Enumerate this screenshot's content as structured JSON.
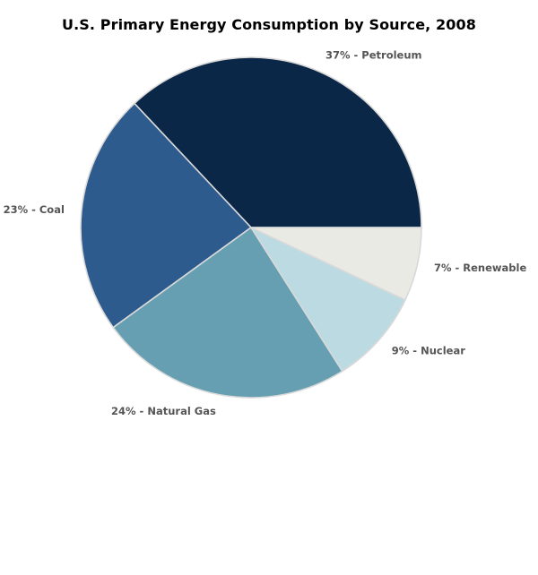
{
  "chart_data": {
    "type": "pie",
    "title": "U.S. Primary Energy Consumption by Source, 2008",
    "slices": [
      {
        "label": "Petroleum",
        "value": 37,
        "display": "37% - Petroleum",
        "color": "#0b2747"
      },
      {
        "label": "Coal",
        "value": 23,
        "display": "23% - Coal",
        "color": "#2e5b8d"
      },
      {
        "label": "Natural Gas",
        "value": 24,
        "display": "24% - Natural Gas",
        "color": "#669fb2"
      },
      {
        "label": "Nuclear",
        "value": 9,
        "display": "9% - Nuclear",
        "color": "#bcdae2"
      },
      {
        "label": "Renewable",
        "value": 7,
        "display": "7% - Renewable",
        "color": "#e8eae3"
      }
    ],
    "start_angle_deg": 0,
    "direction": "counterclockwise",
    "edge_color": "#d9d9d9",
    "label_color": "#555555"
  }
}
